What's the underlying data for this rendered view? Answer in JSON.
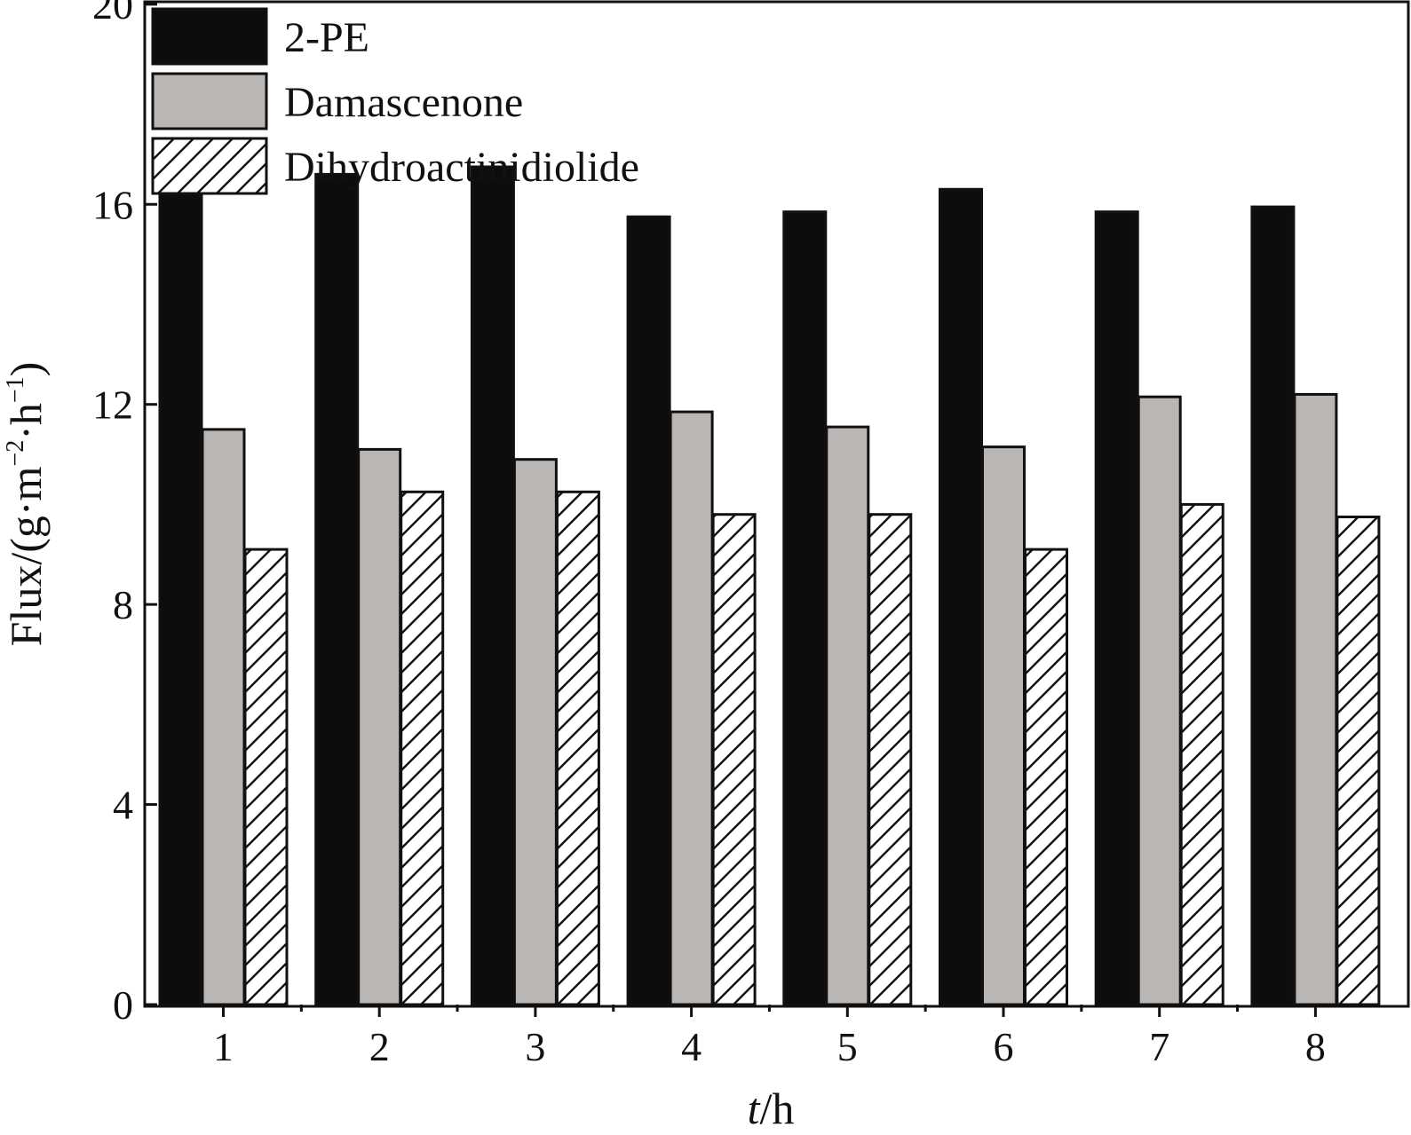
{
  "chart_data": {
    "type": "bar",
    "title": "",
    "xlabel": {
      "italic": "t",
      "rest": "/h"
    },
    "ylabel": {
      "main": "Flux/(g·m",
      "sup1": "−2",
      "mid": "·h",
      "sup2": "−1",
      "end": ")"
    },
    "ylim": [
      0,
      20
    ],
    "y_axis_top": 20.05,
    "yticks": [
      0,
      4,
      8,
      12,
      16,
      20
    ],
    "categories": [
      "1",
      "2",
      "3",
      "4",
      "5",
      "6",
      "7",
      "8"
    ],
    "legend_position": "top-left",
    "series": [
      {
        "name": "2-PE",
        "fill": "black",
        "values": [
          16.4,
          16.6,
          16.75,
          15.75,
          15.85,
          16.3,
          15.85,
          15.95
        ]
      },
      {
        "name": "Damascenone",
        "fill": "gray",
        "values": [
          11.5,
          11.1,
          10.9,
          11.85,
          11.55,
          11.15,
          12.15,
          12.2
        ]
      },
      {
        "name": "Dihydroactinidiolide",
        "fill": "hatched",
        "values": [
          9.1,
          10.25,
          10.25,
          9.8,
          9.8,
          9.1,
          10.0,
          9.75
        ]
      }
    ]
  },
  "colors": {
    "black_bar": "#0d0d0d",
    "gray_bar": "#b9b6b3",
    "hatch_bg": "#ffffff",
    "hatch_line": "#111111",
    "axis": "#111111"
  }
}
